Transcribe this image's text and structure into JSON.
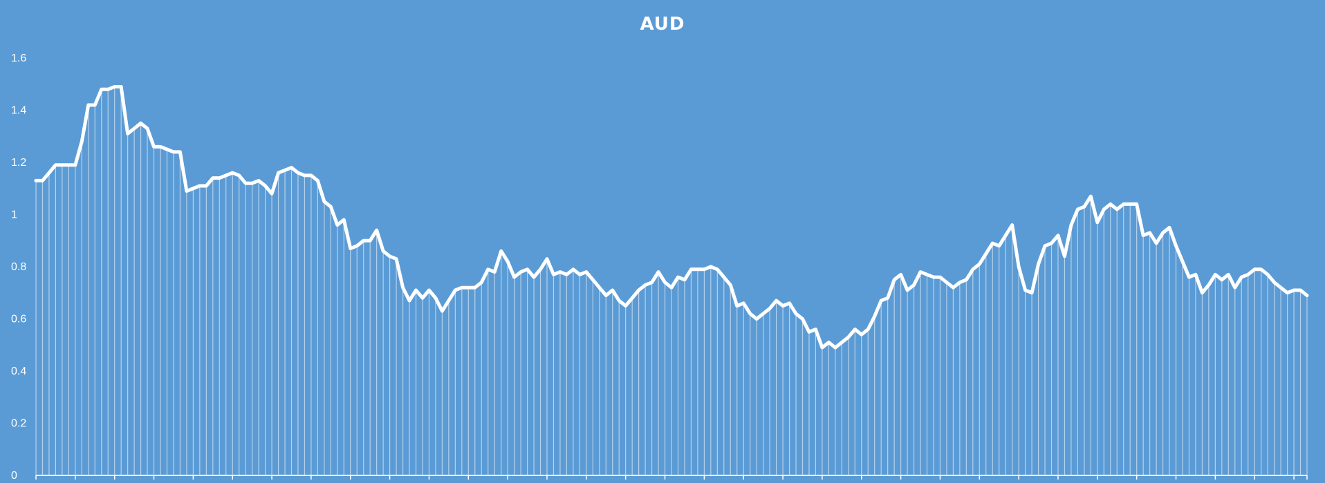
{
  "chart_data": {
    "type": "area",
    "title": "AUD",
    "xlabel": "",
    "ylabel": "",
    "ylim": [
      0,
      1.6
    ],
    "yticks": [
      "0",
      "0.2",
      "0.4",
      "0.6",
      "0.8",
      "1",
      "1.2",
      "1.4",
      "1.6"
    ],
    "grid": false,
    "legend": "none",
    "colors": {
      "background": "#5b9bd5",
      "line": "#ffffff",
      "fill": "#ffffff"
    },
    "values": [
      1.13,
      1.13,
      1.16,
      1.19,
      1.19,
      1.19,
      1.19,
      1.28,
      1.42,
      1.42,
      1.48,
      1.48,
      1.49,
      1.49,
      1.31,
      1.33,
      1.35,
      1.33,
      1.26,
      1.26,
      1.25,
      1.24,
      1.24,
      1.09,
      1.1,
      1.11,
      1.11,
      1.14,
      1.14,
      1.15,
      1.16,
      1.15,
      1.12,
      1.12,
      1.13,
      1.11,
      1.08,
      1.16,
      1.17,
      1.18,
      1.16,
      1.15,
      1.15,
      1.13,
      1.05,
      1.03,
      0.96,
      0.98,
      0.87,
      0.88,
      0.9,
      0.9,
      0.94,
      0.86,
      0.84,
      0.83,
      0.72,
      0.67,
      0.71,
      0.68,
      0.71,
      0.68,
      0.63,
      0.67,
      0.71,
      0.72,
      0.72,
      0.72,
      0.74,
      0.79,
      0.78,
      0.86,
      0.82,
      0.76,
      0.78,
      0.79,
      0.76,
      0.79,
      0.83,
      0.77,
      0.78,
      0.77,
      0.79,
      0.77,
      0.78,
      0.75,
      0.72,
      0.69,
      0.71,
      0.67,
      0.65,
      0.68,
      0.71,
      0.73,
      0.74,
      0.78,
      0.74,
      0.72,
      0.76,
      0.75,
      0.79,
      0.79,
      0.79,
      0.8,
      0.79,
      0.76,
      0.73,
      0.65,
      0.66,
      0.62,
      0.6,
      0.62,
      0.64,
      0.67,
      0.65,
      0.66,
      0.62,
      0.6,
      0.55,
      0.56,
      0.49,
      0.51,
      0.49,
      0.51,
      0.53,
      0.56,
      0.54,
      0.56,
      0.61,
      0.67,
      0.68,
      0.75,
      0.77,
      0.71,
      0.73,
      0.78,
      0.77,
      0.76,
      0.76,
      0.74,
      0.72,
      0.74,
      0.75,
      0.79,
      0.81,
      0.85,
      0.89,
      0.88,
      0.92,
      0.96,
      0.8,
      0.71,
      0.7,
      0.81,
      0.88,
      0.89,
      0.92,
      0.84,
      0.96,
      1.02,
      1.03,
      1.07,
      0.97,
      1.02,
      1.04,
      1.02,
      1.04,
      1.04,
      1.04,
      0.92,
      0.93,
      0.89,
      0.93,
      0.95,
      0.88,
      0.82,
      0.76,
      0.77,
      0.7,
      0.73,
      0.77,
      0.75,
      0.77,
      0.72,
      0.76,
      0.77,
      0.79,
      0.79,
      0.77,
      0.74,
      0.72,
      0.7,
      0.71,
      0.71,
      0.69
    ]
  }
}
